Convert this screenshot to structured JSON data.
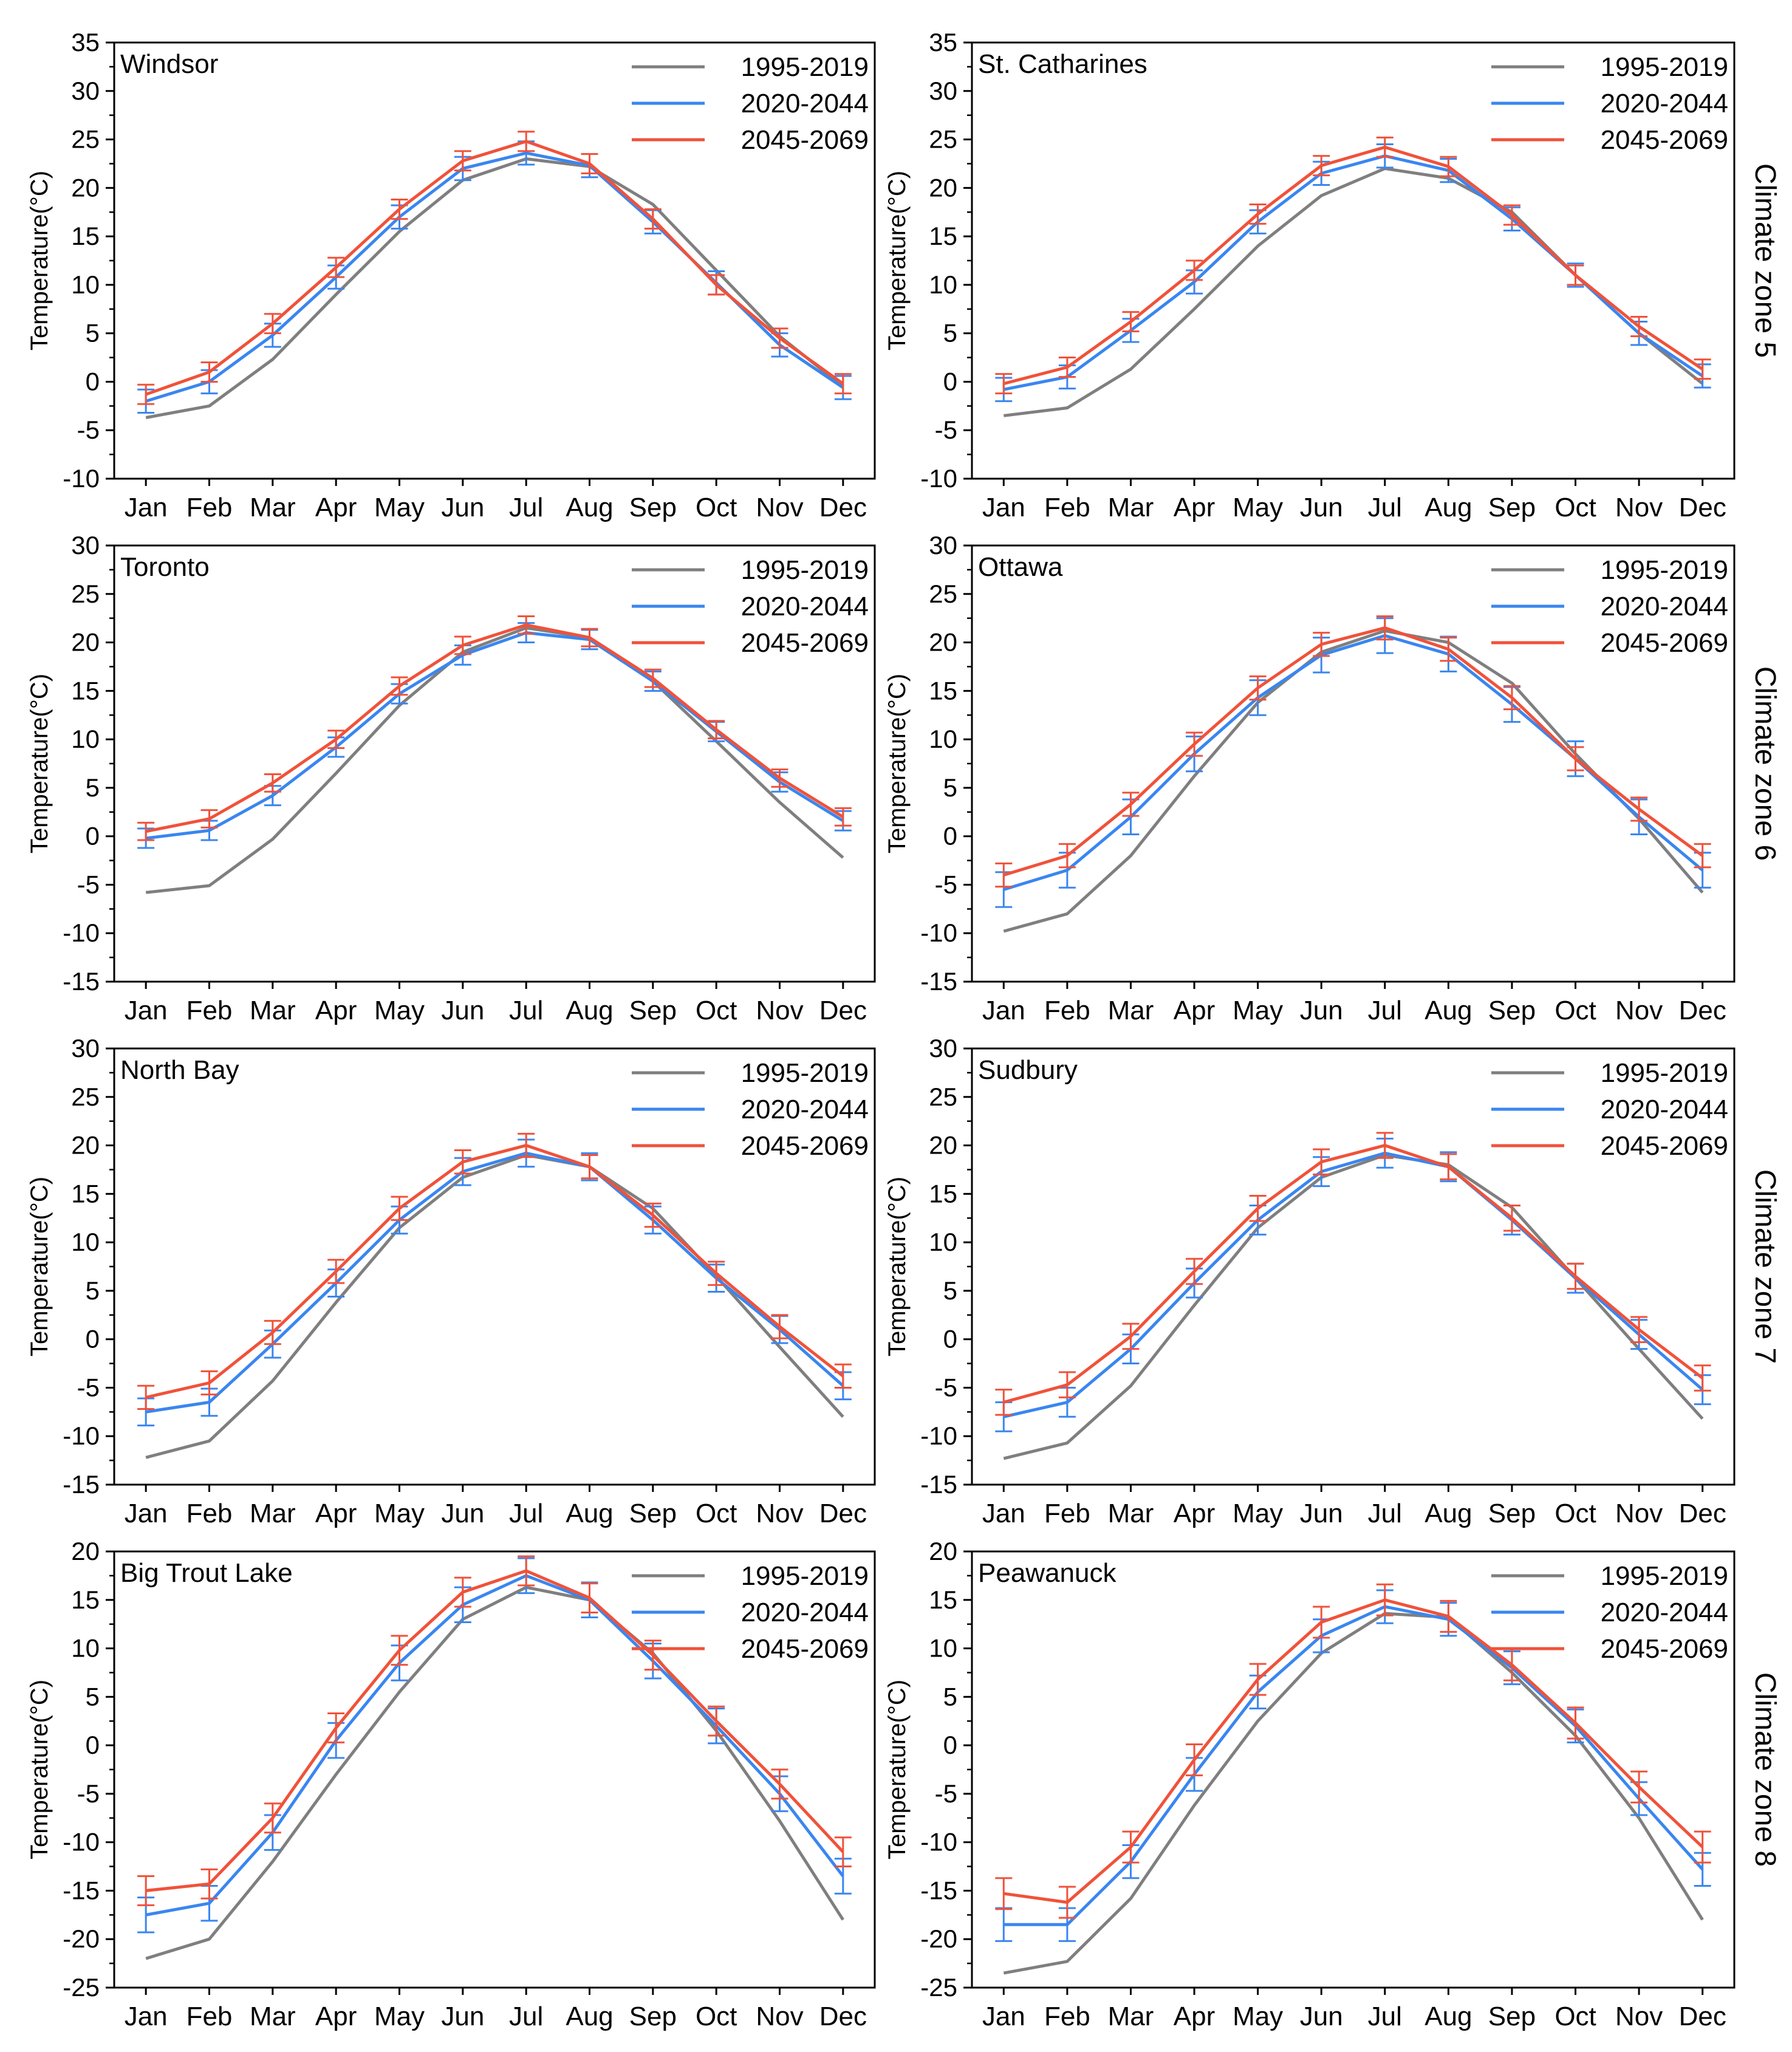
{
  "months": [
    "Jan",
    "Feb",
    "Mar",
    "Apr",
    "May",
    "Jun",
    "Jul",
    "Aug",
    "Sep",
    "Oct",
    "Nov",
    "Dec"
  ],
  "ylabel": "Temperature(°C)",
  "series_names": [
    "1995-2019",
    "2020-2044",
    "2045-2069"
  ],
  "colors": {
    "s1995": "#7f7f7f",
    "s2020": "#3a86f0",
    "s2045": "#f0523a",
    "axis": "#000000"
  },
  "zones": [
    {
      "label": "Climate zone 5"
    },
    {
      "label": "Climate zone 6"
    },
    {
      "label": "Climate zone 7"
    },
    {
      "label": "Climate zone 8"
    }
  ],
  "chart_data": [
    {
      "type": "line",
      "title": "Windsor",
      "ylim": [
        -10,
        35
      ],
      "ytick_step": 5,
      "categories": [
        "Jan",
        "Feb",
        "Mar",
        "Apr",
        "May",
        "Jun",
        "Jul",
        "Aug",
        "Sep",
        "Oct",
        "Nov",
        "Dec"
      ],
      "series": [
        {
          "name": "1995-2019",
          "values": [
            -3.7,
            -2.5,
            2.3,
            9.0,
            15.5,
            20.8,
            23.0,
            22.2,
            18.3,
            11.5,
            4.7,
            -0.5
          ],
          "err": null
        },
        {
          "name": "2020-2044",
          "values": [
            -2.0,
            0.0,
            4.8,
            10.8,
            17.0,
            22.0,
            23.6,
            22.3,
            16.5,
            10.2,
            3.8,
            -0.6
          ],
          "err": 1.2
        },
        {
          "name": "2045-2069",
          "values": [
            -1.3,
            1.0,
            6.0,
            11.8,
            17.8,
            22.8,
            24.8,
            22.5,
            16.8,
            10.0,
            4.5,
            -0.2
          ],
          "err": 1.0
        }
      ]
    },
    {
      "type": "line",
      "title": "St. Catharines",
      "ylim": [
        -10,
        35
      ],
      "ytick_step": 5,
      "categories": [
        "Jan",
        "Feb",
        "Mar",
        "Apr",
        "May",
        "Jun",
        "Jul",
        "Aug",
        "Sep",
        "Oct",
        "Nov",
        "Dec"
      ],
      "series": [
        {
          "name": "1995-2019",
          "values": [
            -3.5,
            -2.7,
            1.3,
            7.5,
            14.0,
            19.2,
            22.0,
            21.0,
            17.5,
            11.0,
            5.0,
            -0.2
          ],
          "err": null
        },
        {
          "name": "2020-2044",
          "values": [
            -0.8,
            0.5,
            5.3,
            10.3,
            16.5,
            21.5,
            23.3,
            21.8,
            16.8,
            11.0,
            5.0,
            0.6
          ],
          "err": 1.2
        },
        {
          "name": "2045-2069",
          "values": [
            -0.2,
            1.5,
            6.2,
            11.5,
            17.3,
            22.3,
            24.2,
            22.2,
            17.2,
            11.0,
            5.7,
            1.3
          ],
          "err": 1.0
        }
      ]
    },
    {
      "type": "line",
      "title": "Toronto",
      "ylim": [
        -15,
        30
      ],
      "ytick_step": 5,
      "categories": [
        "Jan",
        "Feb",
        "Mar",
        "Apr",
        "May",
        "Jun",
        "Jul",
        "Aug",
        "Sep",
        "Oct",
        "Nov",
        "Dec"
      ],
      "series": [
        {
          "name": "1995-2019",
          "values": [
            -5.8,
            -5.1,
            -0.3,
            6.5,
            13.5,
            19.0,
            21.5,
            20.5,
            16.0,
            9.8,
            3.5,
            -2.2
          ],
          "err": null
        },
        {
          "name": "2020-2044",
          "values": [
            -0.2,
            0.6,
            4.2,
            9.2,
            14.7,
            18.7,
            21.0,
            20.3,
            16.0,
            10.8,
            5.6,
            1.6
          ],
          "err": 1.0
        },
        {
          "name": "2045-2069",
          "values": [
            0.5,
            1.8,
            5.5,
            10.0,
            15.5,
            19.7,
            21.8,
            20.5,
            16.3,
            11.0,
            6.0,
            2.0
          ],
          "err": 0.9
        }
      ]
    },
    {
      "type": "line",
      "title": "Ottawa",
      "ylim": [
        -15,
        30
      ],
      "ytick_step": 5,
      "categories": [
        "Jan",
        "Feb",
        "Mar",
        "Apr",
        "May",
        "Jun",
        "Jul",
        "Aug",
        "Sep",
        "Oct",
        "Nov",
        "Dec"
      ],
      "series": [
        {
          "name": "1995-2019",
          "values": [
            -9.8,
            -8.0,
            -2.0,
            6.2,
            13.8,
            19.0,
            21.2,
            20.0,
            15.8,
            8.5,
            1.8,
            -5.8
          ],
          "err": null
        },
        {
          "name": "2020-2044",
          "values": [
            -5.5,
            -3.5,
            2.0,
            8.5,
            14.3,
            18.7,
            20.7,
            18.8,
            13.6,
            8.0,
            2.0,
            -3.5
          ],
          "err": 1.8
        },
        {
          "name": "2045-2069",
          "values": [
            -4.0,
            -2.0,
            3.3,
            9.5,
            15.3,
            19.8,
            21.5,
            19.3,
            14.3,
            8.0,
            2.8,
            -2.0
          ],
          "err": 1.2
        }
      ]
    },
    {
      "type": "line",
      "title": "North Bay",
      "ylim": [
        -15,
        30
      ],
      "ytick_step": 5,
      "categories": [
        "Jan",
        "Feb",
        "Mar",
        "Apr",
        "May",
        "Jun",
        "Jul",
        "Aug",
        "Sep",
        "Oct",
        "Nov",
        "Dec"
      ],
      "series": [
        {
          "name": "1995-2019",
          "values": [
            -12.2,
            -10.5,
            -4.3,
            3.8,
            11.5,
            16.7,
            19.0,
            17.8,
            13.5,
            6.5,
            -0.8,
            -8.0
          ],
          "err": null
        },
        {
          "name": "2020-2044",
          "values": [
            -7.5,
            -6.5,
            -0.5,
            5.8,
            12.3,
            17.3,
            19.2,
            17.8,
            12.3,
            6.3,
            1.0,
            -4.8
          ],
          "err": 1.4
        },
        {
          "name": "2045-2069",
          "values": [
            -6.0,
            -4.5,
            0.7,
            7.0,
            13.5,
            18.3,
            20.0,
            17.8,
            12.8,
            6.8,
            1.3,
            -3.8
          ],
          "err": 1.2
        }
      ]
    },
    {
      "type": "line",
      "title": "Sudbury",
      "ylim": [
        -15,
        30
      ],
      "ytick_step": 5,
      "categories": [
        "Jan",
        "Feb",
        "Mar",
        "Apr",
        "May",
        "Jun",
        "Jul",
        "Aug",
        "Sep",
        "Oct",
        "Nov",
        "Dec"
      ],
      "series": [
        {
          "name": "1995-2019",
          "values": [
            -12.3,
            -10.7,
            -4.8,
            3.5,
            11.5,
            16.7,
            19.0,
            18.0,
            13.6,
            6.3,
            -1.0,
            -8.2
          ],
          "err": null
        },
        {
          "name": "2020-2044",
          "values": [
            -8.0,
            -6.5,
            -1.0,
            5.8,
            12.3,
            17.3,
            19.2,
            17.8,
            12.3,
            6.3,
            0.5,
            -5.2
          ],
          "err": 1.5
        },
        {
          "name": "2045-2069",
          "values": [
            -6.5,
            -4.7,
            0.3,
            7.0,
            13.5,
            18.3,
            20.0,
            17.8,
            12.5,
            6.5,
            1.0,
            -4.0
          ],
          "err": 1.3
        }
      ]
    },
    {
      "type": "line",
      "title": "Big Trout Lake",
      "ylim": [
        -25,
        20
      ],
      "ytick_step": 5,
      "categories": [
        "Jan",
        "Feb",
        "Mar",
        "Apr",
        "May",
        "Jun",
        "Jul",
        "Aug",
        "Sep",
        "Oct",
        "Nov",
        "Dec"
      ],
      "series": [
        {
          "name": "1995-2019",
          "values": [
            -22.0,
            -20.0,
            -12.0,
            -3.0,
            5.5,
            13.0,
            16.3,
            15.0,
            9.5,
            1.5,
            -7.8,
            -18.0
          ],
          "err": null
        },
        {
          "name": "2020-2044",
          "values": [
            -17.5,
            -16.3,
            -9.0,
            0.5,
            8.5,
            14.5,
            17.5,
            15.0,
            8.7,
            2.0,
            -5.0,
            -13.5
          ],
          "err": 1.8
        },
        {
          "name": "2045-2069",
          "values": [
            -15.0,
            -14.3,
            -7.5,
            1.8,
            9.8,
            15.8,
            18.0,
            15.2,
            9.3,
            2.5,
            -4.0,
            -11.0
          ],
          "err": 1.5
        }
      ]
    },
    {
      "type": "line",
      "title": "Peawanuck",
      "ylim": [
        -25,
        20
      ],
      "ytick_step": 5,
      "categories": [
        "Jan",
        "Feb",
        "Mar",
        "Apr",
        "May",
        "Jun",
        "Jul",
        "Aug",
        "Sep",
        "Oct",
        "Nov",
        "Dec"
      ],
      "series": [
        {
          "name": "1995-2019",
          "values": [
            -23.5,
            -22.3,
            -15.8,
            -6.2,
            2.5,
            9.5,
            13.6,
            13.2,
            7.5,
            1.0,
            -7.5,
            -18.0
          ],
          "err": null
        },
        {
          "name": "2020-2044",
          "values": [
            -18.5,
            -18.5,
            -12.0,
            -3.0,
            5.5,
            11.3,
            14.3,
            13.0,
            8.0,
            2.0,
            -5.5,
            -12.8
          ],
          "err": 1.7
        },
        {
          "name": "2045-2069",
          "values": [
            -15.3,
            -16.2,
            -10.5,
            -1.5,
            6.8,
            12.7,
            15.0,
            13.3,
            8.3,
            2.3,
            -4.3,
            -10.5
          ],
          "err": 1.6
        }
      ]
    }
  ]
}
